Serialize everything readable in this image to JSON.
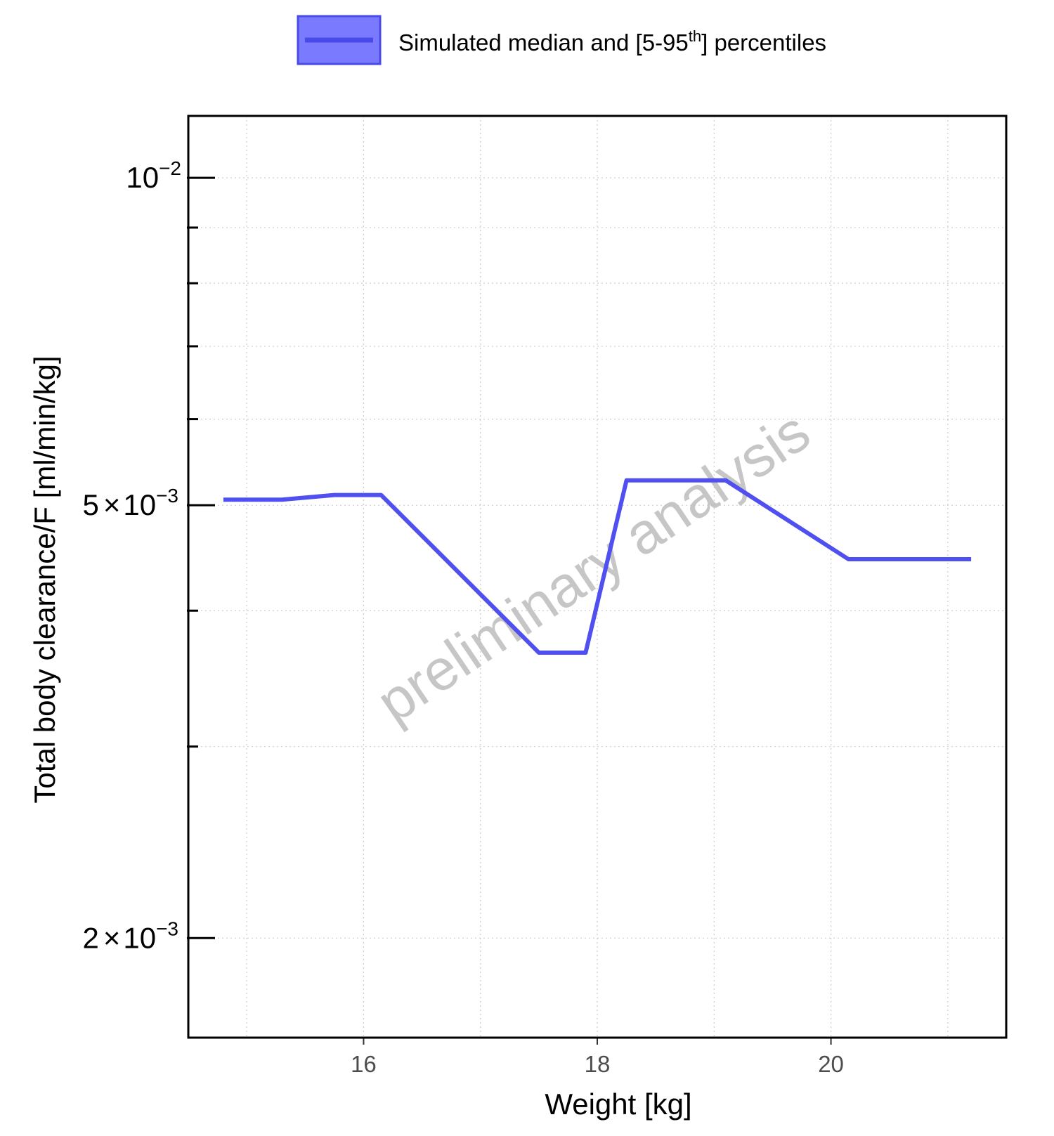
{
  "chart_data": {
    "type": "line",
    "x": [
      14.8,
      15.3,
      15.75,
      16.15,
      17.5,
      17.9,
      18.25,
      19.1,
      20.15,
      21.2
    ],
    "series": [
      {
        "name": "Simulated median and [5-95th] percentiles",
        "values": [
          0.00506,
          0.00506,
          0.00511,
          0.00511,
          0.00366,
          0.00366,
          0.00527,
          0.00527,
          0.00446,
          0.00446
        ]
      }
    ],
    "xlabel": "Weight [kg]",
    "ylabel": "Total body clearance/F [ml/min/kg]",
    "xlim": [
      14.5,
      21.5
    ],
    "ylim": [
      0.00162,
      0.0114
    ],
    "y_scale": "log",
    "x_ticks": [
      16,
      18,
      20
    ],
    "x_minor_ticks": [
      15,
      17,
      19,
      21
    ],
    "y_ticks": [
      {
        "value": 0.01,
        "mantissa": "",
        "base": "10",
        "exponent": "−2"
      },
      {
        "value": 0.005,
        "mantissa": "5",
        "base": "10",
        "exponent": "−3"
      },
      {
        "value": 0.002,
        "mantissa": "2",
        "base": "10",
        "exponent": "−3"
      }
    ],
    "y_minor_ticks": [
      0.003,
      0.004,
      0.006,
      0.007,
      0.008,
      0.009
    ],
    "grid": true,
    "legend_position": "top",
    "legend_label_parts": [
      "Simulated median and [5-95",
      "th",
      "] percentiles"
    ],
    "watermark": "preliminary analysis",
    "colors": {
      "series": "#5050f0",
      "legend_fill": "#7a7aff",
      "grid": "#cccccc",
      "watermark": "#bdbdbd"
    }
  }
}
